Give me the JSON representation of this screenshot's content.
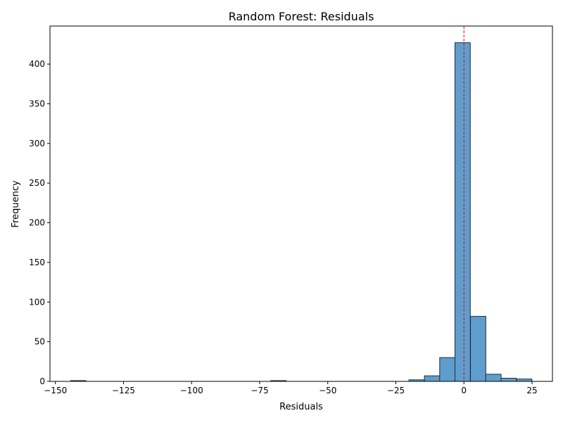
{
  "chart_data": {
    "type": "bar",
    "title": "Random Forest: Residuals",
    "xlabel": "Residuals",
    "ylabel": "Frequency",
    "xlim": [
      -152,
      32.5
    ],
    "ylim": [
      0,
      448
    ],
    "x_ticks": [
      -150,
      -125,
      -100,
      -75,
      -50,
      -25,
      0,
      25
    ],
    "y_ticks": [
      0,
      50,
      100,
      150,
      200,
      250,
      300,
      350,
      400
    ],
    "bin_width": 5.64,
    "bins": [
      {
        "start": -144.4,
        "count": 1
      },
      {
        "start": -70.9,
        "count": 1
      },
      {
        "start": -20.2,
        "count": 2
      },
      {
        "start": -14.5,
        "count": 7
      },
      {
        "start": -8.9,
        "count": 30
      },
      {
        "start": -3.3,
        "count": 427
      },
      {
        "start": 2.4,
        "count": 82
      },
      {
        "start": 8.0,
        "count": 9
      },
      {
        "start": 13.6,
        "count": 4
      },
      {
        "start": 19.3,
        "count": 3
      }
    ],
    "reference_line": {
      "x": 0,
      "color": "#ff0000",
      "style": "dashed"
    },
    "bar_color": "#5d9ecf",
    "bar_edge_color": "#2b2b2b",
    "grid": false,
    "legend": "none"
  }
}
